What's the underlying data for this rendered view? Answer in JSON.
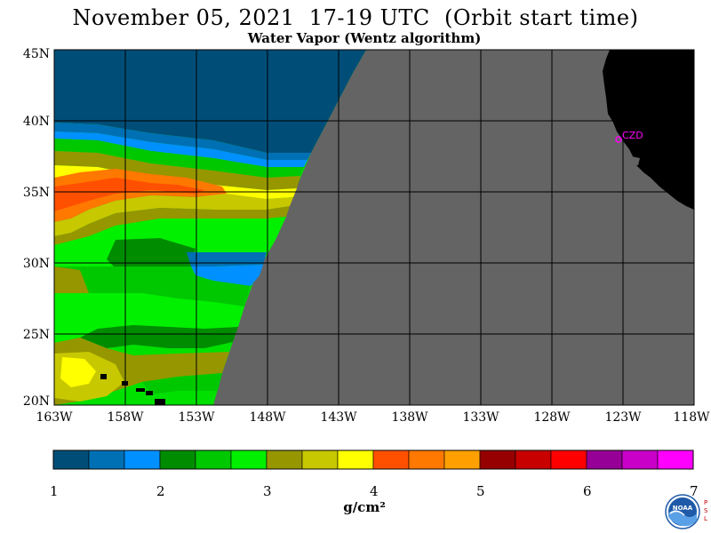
{
  "title": "November 05, 2021  17-19 UTC  (Orbit start time)",
  "subtitle": "Water Vapor (Wentz algorithm)",
  "map": {
    "lat_labels": [
      "45N",
      "40N",
      "35N",
      "30N",
      "25N",
      "20N"
    ],
    "lon_labels": [
      "163W",
      "158W",
      "153W",
      "148W",
      "143W",
      "138W",
      "133W",
      "128W",
      "123W",
      "118W"
    ],
    "station_label": "CZD",
    "colors": {
      "no_data": "#646464",
      "land": "#000000",
      "station": "#ff00ff"
    }
  },
  "colorbar": {
    "ticks": [
      "1",
      "2",
      "3",
      "4",
      "5",
      "6",
      "7"
    ],
    "units": "g/cm²",
    "colors": [
      "#004e78",
      "#0070b4",
      "#0090ff",
      "#008c00",
      "#00c800",
      "#00f000",
      "#969600",
      "#c8c800",
      "#ffff00",
      "#ff5000",
      "#ff7800",
      "#ffa000",
      "#960000",
      "#c80000",
      "#ff0000",
      "#960096",
      "#c800c8",
      "#ff00ff"
    ]
  },
  "logo": {
    "text": "NOAA",
    "side_letters": "PSL"
  }
}
